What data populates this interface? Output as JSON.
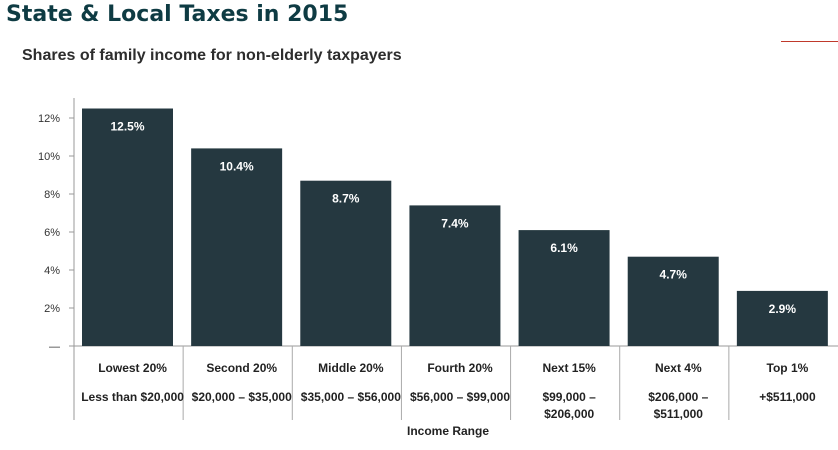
{
  "header": {
    "title": "State & Local Taxes in 2015",
    "subtitle": "Shares of family income for non-elderly taxpayers"
  },
  "colors": {
    "bar": "#253840",
    "title": "#0e3b43",
    "accent": "#c0392b"
  },
  "chart_data": {
    "type": "bar",
    "title": "Shares of family income for non-elderly taxpayers",
    "xlabel": "Income Range",
    "ylabel": "",
    "ylim": [
      0,
      13
    ],
    "yticks": [
      {
        "value": 0,
        "label": "—"
      },
      {
        "value": 2,
        "label": "2%"
      },
      {
        "value": 4,
        "label": "4%"
      },
      {
        "value": 6,
        "label": "6%"
      },
      {
        "value": 8,
        "label": "8%"
      },
      {
        "value": 10,
        "label": "10%"
      },
      {
        "value": 12,
        "label": "12%"
      }
    ],
    "categories": [
      "Lowest 20%",
      "Second 20%",
      "Middle 20%",
      "Fourth 20%",
      "Next 15%",
      "Next 4%",
      "Top 1%"
    ],
    "ranges": [
      [
        "Less than $20,000"
      ],
      [
        "$20,000 – $35,000"
      ],
      [
        "$35,000 – $56,000"
      ],
      [
        "$56,000 – $99,000"
      ],
      [
        "$99,000 –",
        "$206,000"
      ],
      [
        "$206,000 –",
        "$511,000"
      ],
      [
        "+$511,000"
      ]
    ],
    "values": [
      12.5,
      10.4,
      8.7,
      7.4,
      6.1,
      4.7,
      2.9
    ],
    "data_labels": [
      "12.5%",
      "10.4%",
      "8.7%",
      "7.4%",
      "6.1%",
      "4.7%",
      "2.9%"
    ],
    "grid": false
  }
}
